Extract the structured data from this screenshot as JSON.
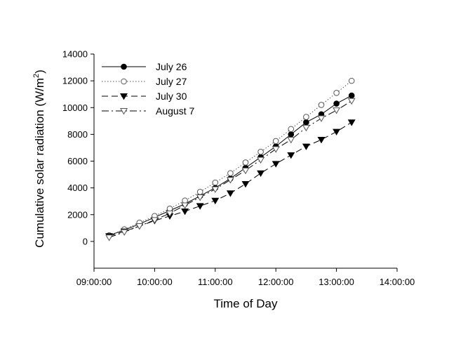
{
  "chart_data": {
    "type": "line",
    "xlabel": "Time of Day",
    "ylabel_main": "Cumulative solar radiation (W/m",
    "ylabel_sup": "2",
    "ylabel_close": ")",
    "xlim": [
      "09:00:00",
      "14:00:00"
    ],
    "ylim": [
      -2000,
      14000
    ],
    "x_ticks": [
      "09:00:00",
      "10:00:00",
      "11:00:00",
      "12:00:00",
      "13:00:00",
      "14:00:00"
    ],
    "y_ticks": [
      0,
      2000,
      4000,
      6000,
      8000,
      10000,
      12000,
      14000
    ],
    "y_tick_labels": [
      "0",
      "2000",
      "4000",
      "6000",
      "8000",
      "10000",
      "12000",
      "14000"
    ],
    "grid": false,
    "legend_position": "top-left",
    "x": [
      "09:15:00",
      "09:30:00",
      "09:45:00",
      "10:00:00",
      "10:15:00",
      "10:30:00",
      "10:45:00",
      "11:00:00",
      "11:15:00",
      "11:30:00",
      "11:45:00",
      "12:00:00",
      "12:15:00",
      "12:30:00",
      "12:45:00",
      "13:00:00",
      "13:15:00"
    ],
    "series": [
      {
        "name": "July 26",
        "marker": "filled-circle",
        "line": "solid",
        "values": [
          450,
          850,
          1300,
          1800,
          2300,
          2800,
          3400,
          4000,
          4700,
          5500,
          6300,
          7100,
          8000,
          8900,
          9500,
          10300,
          10900
        ]
      },
      {
        "name": "July 27",
        "marker": "open-circle",
        "line": "dotted",
        "values": [
          450,
          900,
          1400,
          1900,
          2450,
          3050,
          3700,
          4400,
          5100,
          5900,
          6700,
          7500,
          8400,
          9300,
          10200,
          11100,
          12000
        ]
      },
      {
        "name": "July 30",
        "marker": "filled-triangle-down",
        "line": "dashed",
        "values": [
          400,
          750,
          1150,
          1550,
          1900,
          2250,
          2650,
          3050,
          3600,
          4300,
          5100,
          5800,
          6450,
          7100,
          7600,
          8200,
          8900
        ]
      },
      {
        "name": "August 7",
        "marker": "open-triangle-down",
        "line": "dash-dot",
        "values": [
          300,
          700,
          1150,
          1600,
          2100,
          2700,
          3300,
          3900,
          4600,
          5300,
          6100,
          6900,
          7600,
          8500,
          9200,
          9800,
          10500
        ]
      }
    ]
  }
}
